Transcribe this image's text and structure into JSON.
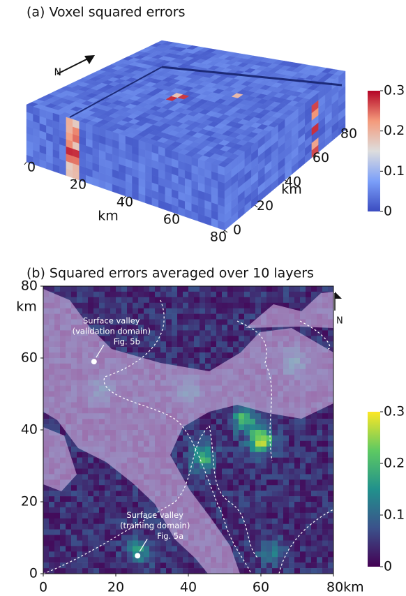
{
  "chart_data": [
    {
      "type": "voxel",
      "title": "(a) Voxel squared errors",
      "xlabel": "km",
      "ylabel": "km",
      "xlim": [
        0,
        80
      ],
      "xticks": [
        0,
        20,
        40,
        60,
        80
      ],
      "ylim": [
        0,
        80
      ],
      "yticks": [
        0,
        20,
        40,
        60,
        80
      ],
      "north": "N",
      "colorbar": {
        "colormap": "coolwarm",
        "lim": [
          0,
          0.3
        ],
        "ticks": [
          0,
          0.1,
          0.2,
          0.3
        ]
      }
    },
    {
      "type": "heatmap",
      "title": "(b) Squared errors averaged over 10 layers",
      "ylabel": "km",
      "xlim": [
        0,
        80
      ],
      "xticks": [
        0,
        20,
        40,
        60,
        {
          "value": 80,
          "label": "80km"
        }
      ],
      "ylim": [
        0,
        80
      ],
      "yticks": [
        0,
        20,
        40,
        60,
        80
      ],
      "north": "N",
      "colorbar": {
        "colormap": "viridis",
        "lim": [
          0,
          0.3
        ],
        "ticks": [
          0,
          0.1,
          0.2,
          0.3
        ]
      },
      "annotations": [
        {
          "lines": [
            "Surface valley",
            "(validation domain)",
            "Fig. 5b"
          ],
          "x": 14,
          "y": 59
        },
        {
          "lines": [
            "Surface valley",
            "(training domain)",
            "Fig. 5a"
          ],
          "x": 26,
          "y": 5
        }
      ]
    }
  ]
}
